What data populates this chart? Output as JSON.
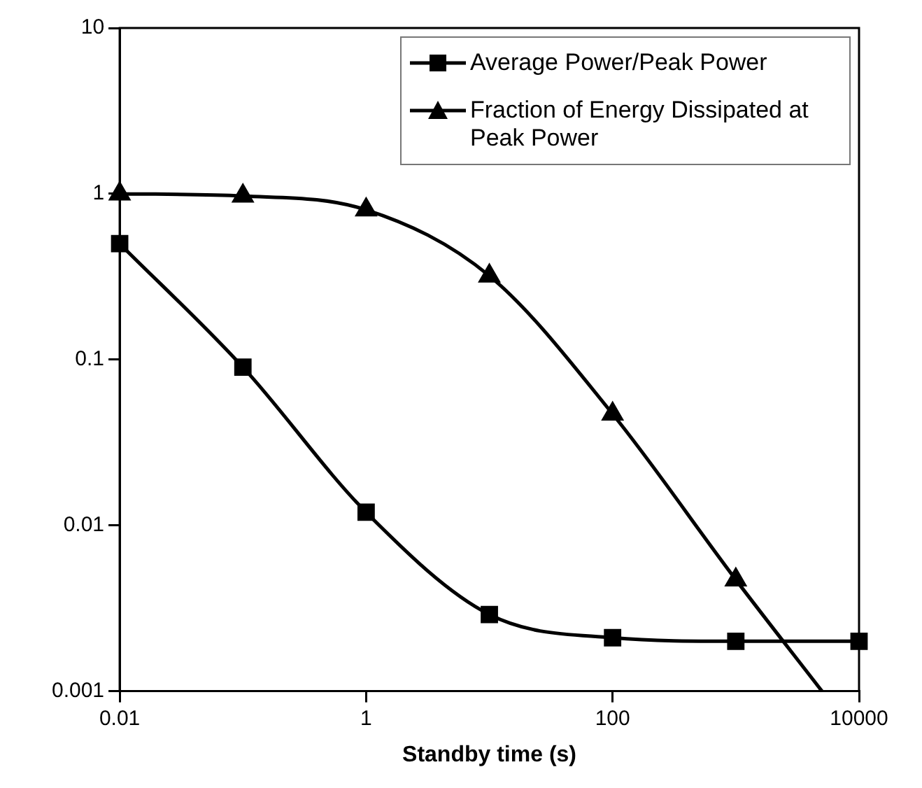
{
  "chart_data": {
    "type": "line",
    "xlabel": "Standby time (s)",
    "log": "xy",
    "grid": false,
    "legend": "top right",
    "xlim": [
      0.01,
      10000
    ],
    "xticks": [
      0.01,
      1,
      100,
      10000
    ],
    "ylim": [
      0.001,
      10
    ],
    "yticks": [
      0.001,
      0.01,
      0.1,
      1,
      10
    ],
    "series": [
      {
        "name": "Average Power/Peak Power",
        "color": "#000000",
        "marker": "square",
        "x": [
          0.01,
          0.1,
          1,
          10,
          100,
          1000,
          10000
        ],
        "values": [
          0.5,
          0.09,
          0.012,
          0.0029,
          0.0021,
          0.002,
          0.002
        ]
      },
      {
        "name": "Fraction of Energy Dissipated at Peak Power",
        "color": "#000000",
        "marker": "triangle",
        "x": [
          0.01,
          0.1,
          1,
          10,
          100,
          1000,
          5000
        ],
        "values": [
          1,
          0.97,
          0.8,
          0.32,
          0.047,
          0.0047,
          0.001
        ]
      }
    ]
  }
}
